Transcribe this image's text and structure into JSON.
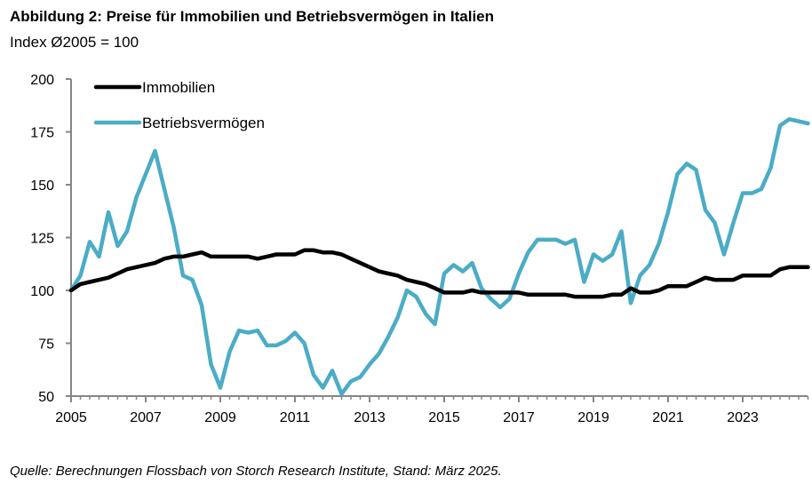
{
  "chart_data": {
    "type": "line",
    "title": "Abbildung 2: Preise für Immobilien und Betriebsvermögen in Italien",
    "subtitle": "Index Ø2005 = 100",
    "xlabel": "",
    "ylabel": "",
    "x_start": 2005,
    "periods_per_year": 4,
    "xlim": [
      2005,
      2024.75
    ],
    "ylim": [
      50,
      200
    ],
    "y_ticks": [
      50,
      75,
      100,
      125,
      150,
      175,
      200
    ],
    "x_ticks": [
      "2005",
      "2007",
      "2009",
      "2011",
      "2013",
      "2015",
      "2017",
      "2019",
      "2021",
      "2023"
    ],
    "grid": false,
    "legend_position": "top-left",
    "series": [
      {
        "name": "Immobilien",
        "color": "#000000",
        "values": [
          100,
          103,
          104,
          105,
          106,
          108,
          110,
          111,
          112,
          113,
          115,
          116,
          116,
          117,
          118,
          116,
          116,
          116,
          116,
          116,
          115,
          116,
          117,
          117,
          117,
          119,
          119,
          118,
          118,
          117,
          115,
          113,
          111,
          109,
          108,
          107,
          105,
          104,
          103,
          101,
          99,
          99,
          99,
          100,
          99,
          99,
          99,
          99,
          99,
          98,
          98,
          98,
          98,
          98,
          97,
          97,
          97,
          97,
          98,
          98,
          101,
          99,
          99,
          100,
          102,
          102,
          102,
          104,
          106,
          105,
          105,
          105,
          107,
          107,
          107,
          107,
          110,
          111,
          111,
          111
        ]
      },
      {
        "name": "Betriebsvermögen",
        "color": "#4BACC6",
        "values": [
          100,
          107,
          123,
          116,
          137,
          121,
          128,
          144,
          155,
          166,
          148,
          130,
          107,
          105,
          93,
          65,
          54,
          71,
          81,
          80,
          81,
          74,
          74,
          76,
          80,
          75,
          60,
          54,
          62,
          51,
          57,
          59,
          65,
          70,
          78,
          87,
          100,
          97,
          89,
          84,
          108,
          112,
          109,
          113,
          101,
          96,
          92,
          96,
          108,
          118,
          124,
          124,
          124,
          122,
          124,
          104,
          117,
          114,
          117,
          128,
          94,
          107,
          112,
          122,
          137,
          155,
          160,
          157,
          138,
          132,
          117,
          132,
          146,
          146,
          148,
          158,
          178,
          181,
          180,
          179
        ]
      }
    ]
  },
  "source": "Quelle: Berechnungen Flossbach von Storch Research Institute, Stand: März 2025."
}
